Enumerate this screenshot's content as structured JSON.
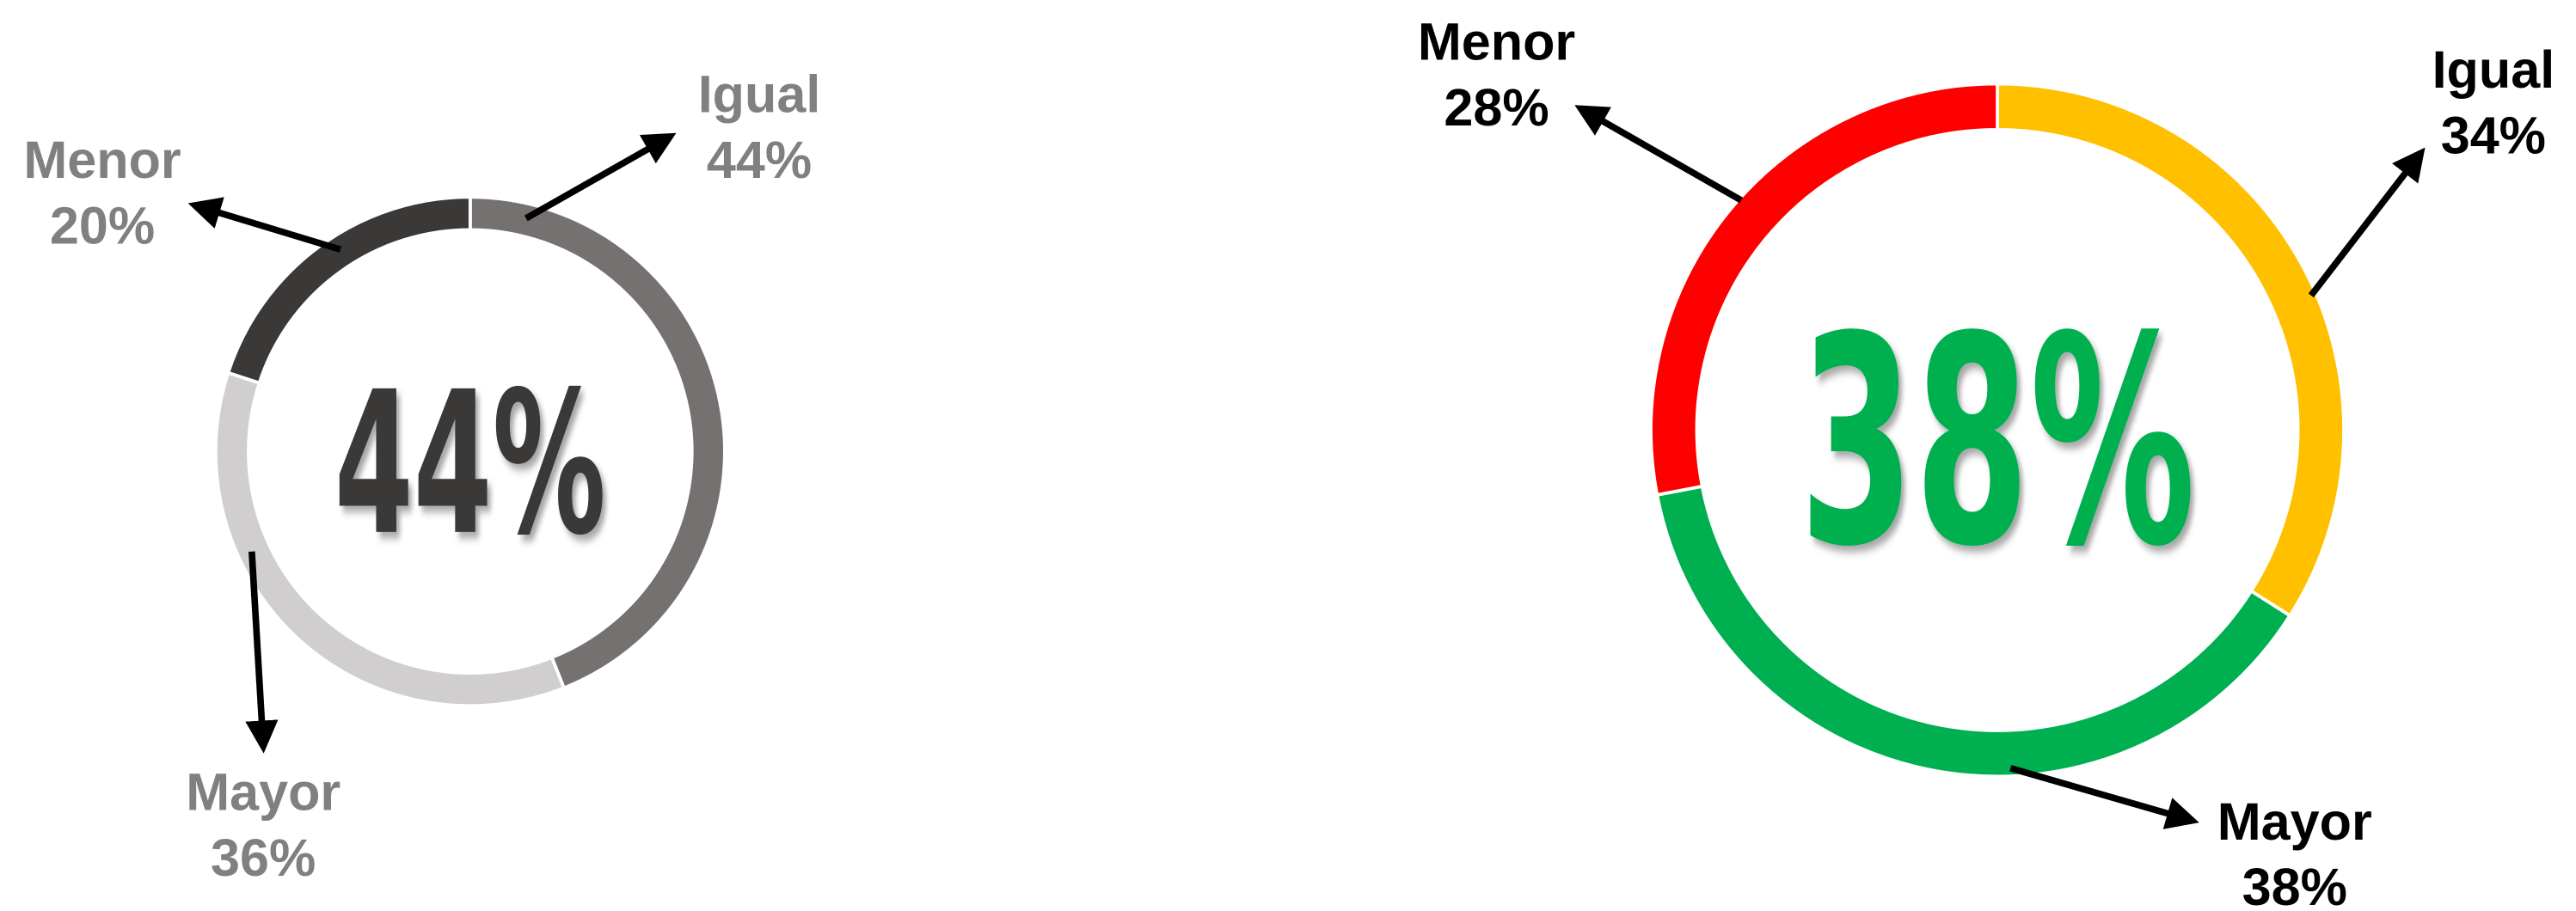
{
  "chart_data": [
    {
      "type": "pie",
      "donut": true,
      "center_label": "44%",
      "center_color": "#3b3838",
      "label_color": "#808080",
      "categories": [
        "Igual",
        "Mayor",
        "Menor"
      ],
      "values": [
        44,
        36,
        20
      ],
      "value_labels": [
        "44%",
        "36%",
        "20%"
      ],
      "colors": [
        "#767171",
        "#d0cece",
        "#3b3838"
      ]
    },
    {
      "type": "pie",
      "donut": true,
      "center_label": "38%",
      "center_color": "#00b050",
      "label_color": "#000000",
      "categories": [
        "Igual",
        "Mayor",
        "Menor"
      ],
      "values": [
        34,
        38,
        28
      ],
      "value_labels": [
        "34%",
        "38%",
        "28%"
      ],
      "colors": [
        "#ffc000",
        "#00b050",
        "#ff0000"
      ]
    }
  ]
}
